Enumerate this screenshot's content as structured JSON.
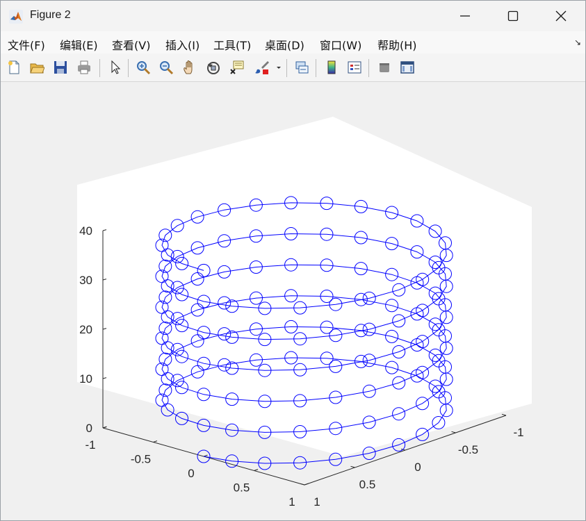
{
  "window": {
    "title": "Figure 2",
    "controls": [
      "minimize",
      "maximize",
      "close"
    ]
  },
  "menubar": {
    "items": [
      "文件(F)",
      "编辑(E)",
      "查看(V)",
      "插入(I)",
      "工具(T)",
      "桌面(D)",
      "窗口(W)",
      "帮助(H)"
    ],
    "overflow_glyph": "↘"
  },
  "toolbar": {
    "buttons": [
      "new-figure",
      "open-file",
      "save",
      "print",
      "edit-plot",
      "zoom-in",
      "zoom-out",
      "pan",
      "rotate-3d",
      "data-cursor",
      "brush",
      "brush-dropdown",
      "link-plot",
      "insert-colorbar",
      "insert-legend",
      "hide-plot-tools",
      "show-plot-tools"
    ]
  },
  "chart_data": {
    "type": "line",
    "projection": "3d",
    "title": "",
    "xlabel": "",
    "ylabel": "",
    "zlabel": "",
    "series": [
      {
        "marker": "circle",
        "color": "#0000ff",
        "equation": "x = sin(t), y = cos(t), z = t",
        "t_range": [
          0,
          37.7
        ],
        "points": 151
      }
    ],
    "xlim": [
      -1,
      1
    ],
    "ylim": [
      -1,
      1
    ],
    "zlim": [
      0,
      40
    ],
    "x_ticks": [
      "-1",
      "-0.5",
      "0",
      "0.5",
      "1"
    ],
    "y_ticks": [
      "-1",
      "-0.5",
      "0",
      "0.5",
      "1"
    ],
    "z_ticks": [
      "0",
      "10",
      "20",
      "30",
      "40"
    ],
    "view": {
      "azimuth": -37.5,
      "elevation": 30
    },
    "grid": false,
    "legend": "none"
  }
}
